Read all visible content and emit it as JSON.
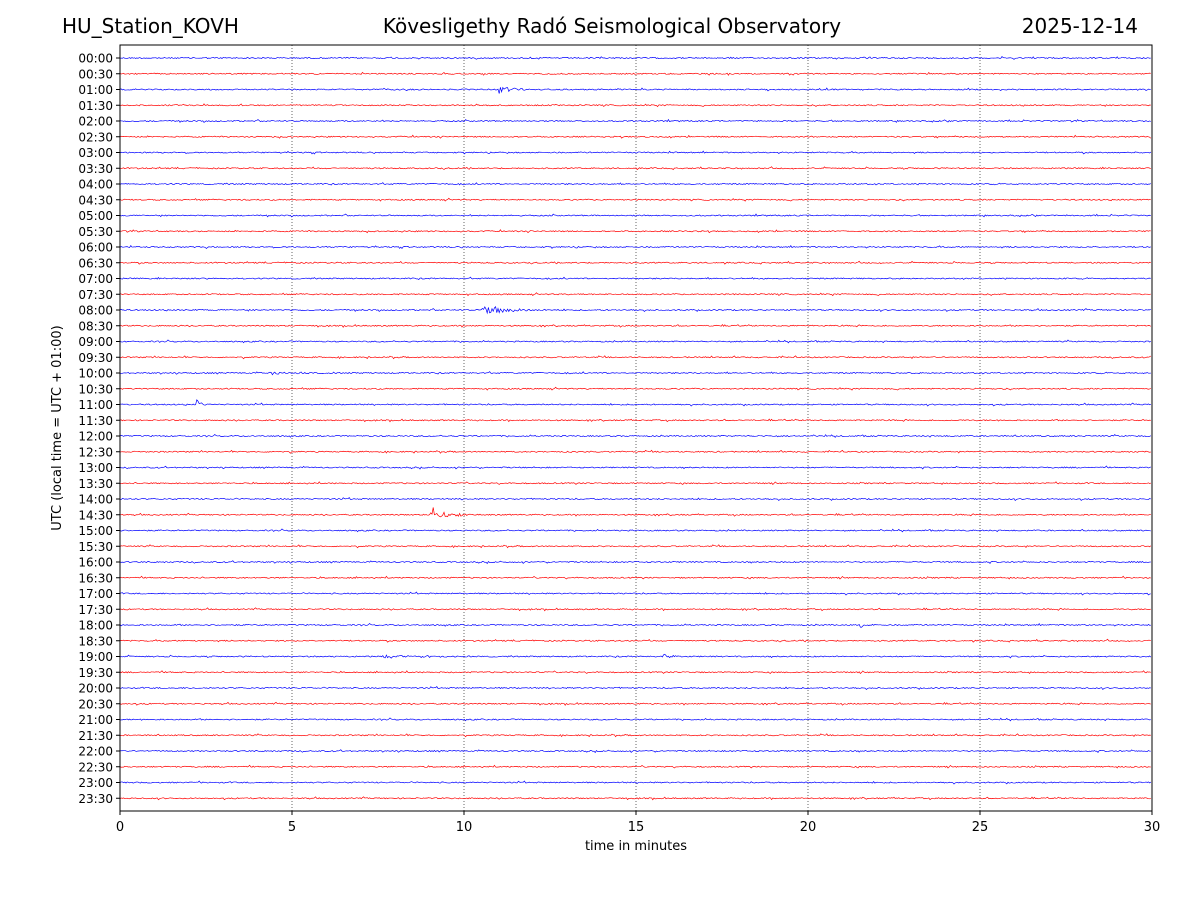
{
  "header": {
    "station": "HU_Station_KOVH",
    "title": "Kövesligethy Radó Seismological Observatory",
    "date": "2025-12-14"
  },
  "chart_data": {
    "type": "line",
    "title": "Kövesligethy Radó Seismological Observatory",
    "xlabel": "time in minutes",
    "ylabel": "UTC (local time = UTC + 01:00)",
    "xlim": [
      0,
      30
    ],
    "x_ticks": [
      0,
      5,
      10,
      15,
      20,
      25,
      30
    ],
    "vertical_gridlines": [
      5,
      10,
      15,
      20,
      25
    ],
    "grid_style": "dotted vertical",
    "row_labels": [
      "00:00",
      "00:30",
      "01:00",
      "01:30",
      "02:00",
      "02:30",
      "03:00",
      "03:30",
      "04:00",
      "04:30",
      "05:00",
      "05:30",
      "06:00",
      "06:30",
      "07:00",
      "07:30",
      "08:00",
      "08:30",
      "09:00",
      "09:30",
      "10:00",
      "10:30",
      "11:00",
      "11:30",
      "12:00",
      "12:30",
      "13:00",
      "13:30",
      "14:00",
      "14:30",
      "15:00",
      "15:30",
      "16:00",
      "16:30",
      "17:00",
      "17:30",
      "18:00",
      "18:30",
      "19:00",
      "19:30",
      "20:00",
      "20:30",
      "21:00",
      "21:30",
      "22:00",
      "22:30",
      "23:00",
      "23:30"
    ],
    "trace_colors": [
      "#0000ff",
      "#ff0000"
    ],
    "events": [
      {
        "row": "01:00",
        "minute": 11.0,
        "duration_min": 1.2,
        "amplitude": 5
      },
      {
        "row": "08:00",
        "minute": 10.5,
        "duration_min": 2.0,
        "amplitude": 6
      },
      {
        "row": "10:00",
        "minute": 4.2,
        "duration_min": 2.0,
        "amplitude": 2
      },
      {
        "row": "11:00",
        "minute": 2.2,
        "duration_min": 0.4,
        "amplitude": 6
      },
      {
        "row": "14:30",
        "minute": 9.0,
        "duration_min": 1.2,
        "amplitude": 9
      },
      {
        "row": "18:00",
        "minute": 21.5,
        "duration_min": 0.4,
        "amplitude": 4
      },
      {
        "row": "19:00",
        "minute": 15.8,
        "duration_min": 0.5,
        "amplitude": 4
      },
      {
        "row": "19:00",
        "minute": 7.5,
        "duration_min": 3.0,
        "amplitude": 2
      }
    ]
  }
}
